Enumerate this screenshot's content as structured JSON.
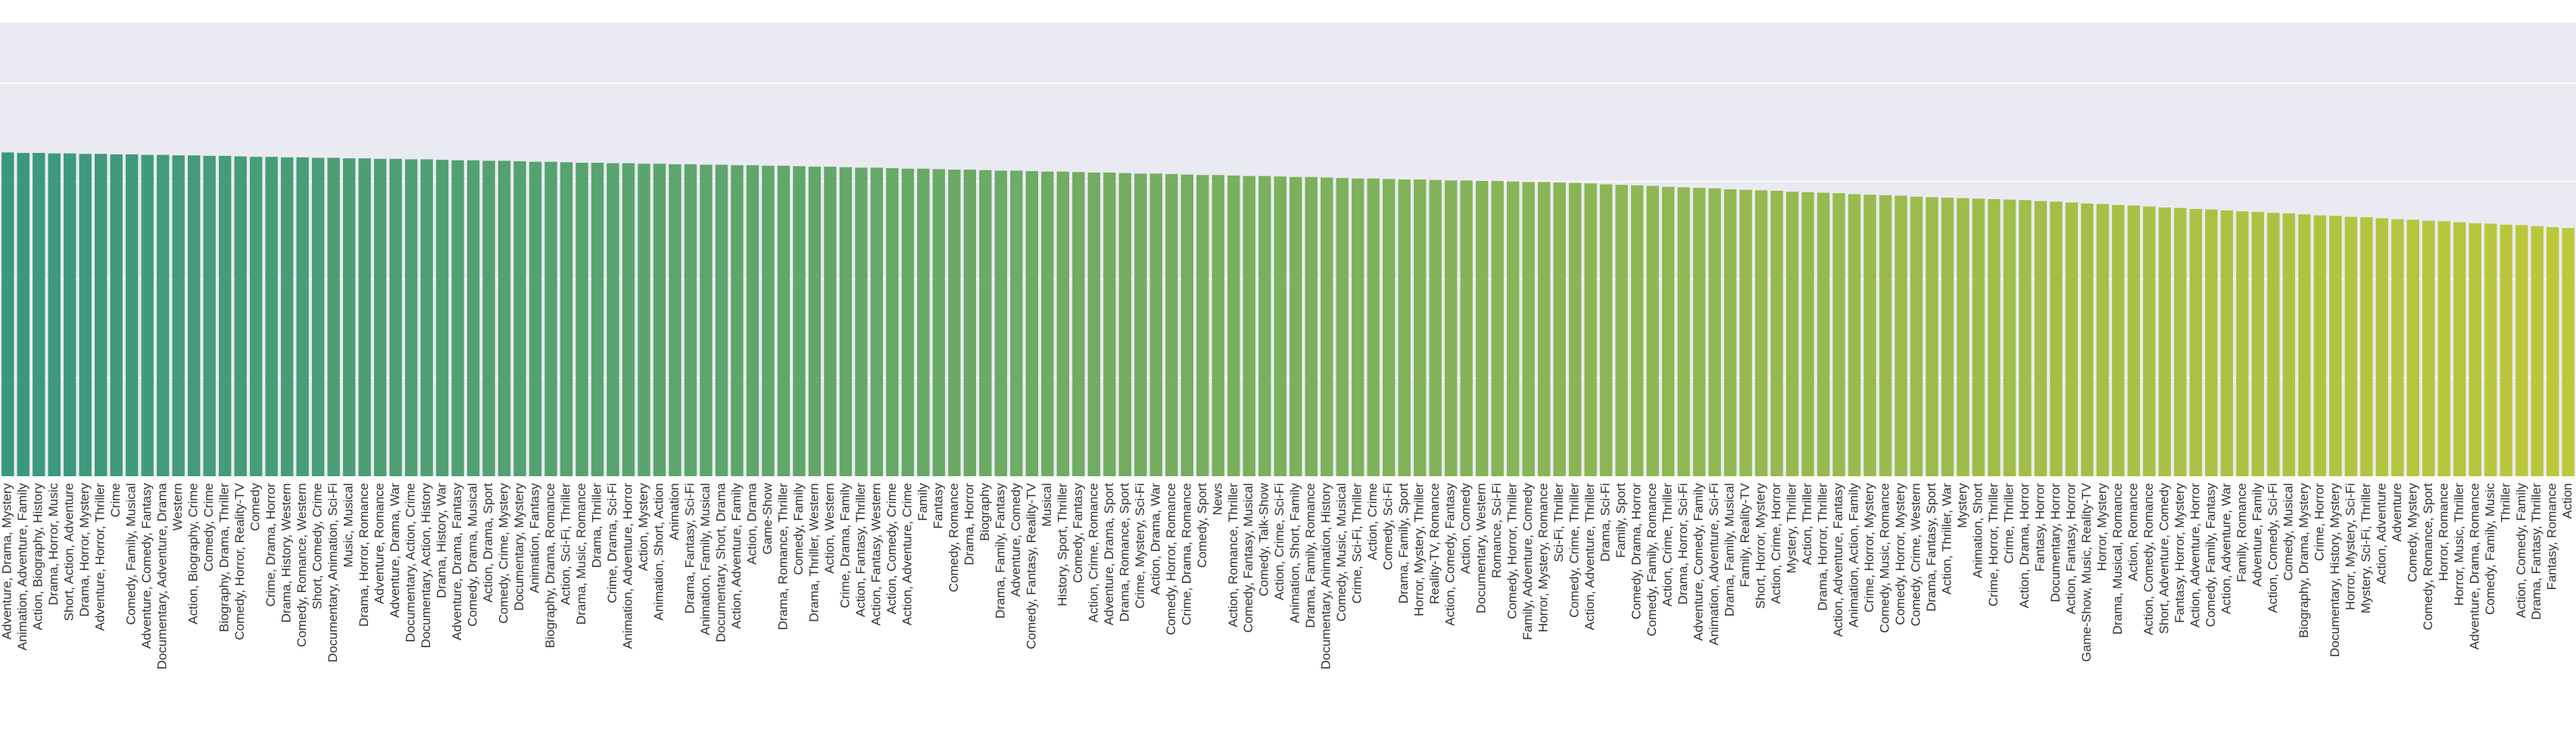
{
  "chart_data": {
    "type": "bar",
    "categories": [
      "Adventure, Drama, Mystery",
      "Animation, Adventure, Family",
      "Action, Biography, History",
      "Drama, Horror, Music",
      "Short, Action, Adventure",
      "Drama, Horror, Mystery",
      "Adventure, Horror, Thriller",
      "Crime",
      "Comedy, Family, Musical",
      "Adventure, Comedy, Fantasy",
      "Documentary, Adventure, Drama",
      "Western",
      "Action, Biography, Crime",
      "Comedy, Crime",
      "Biography, Drama, Thriller",
      "Comedy, Horror, Reality-TV",
      "Comedy",
      "Crime, Drama, Horror",
      "Drama, History, Western",
      "Comedy, Romance, Western",
      "Short, Comedy, Crime",
      "Documentary, Animation, Sci-Fi",
      "Music, Musical",
      "Drama, Horror, Romance",
      "Adventure, Romance",
      "Adventure, Drama, War",
      "Documentary, Action, Crime",
      "Documentary, Action, History",
      "Drama, History, War",
      "Adventure, Drama, Fantasy",
      "Comedy, Drama, Musical",
      "Action, Drama, Sport",
      "Comedy, Crime, Mystery",
      "Documentary, Mystery",
      "Animation, Fantasy",
      "Biography, Drama, Romance",
      "Action, Sci-Fi, Thriller",
      "Drama, Music, Romance",
      "Drama, Thriller",
      "Crime, Drama, Sci-Fi",
      "Animation, Adventure, Horror",
      "Action, Mystery",
      "Animation, Short, Action",
      "Animation",
      "Drama, Fantasy, Sci-Fi",
      "Animation, Family, Musical",
      "Documentary, Short, Drama",
      "Action, Adventure, Family",
      "Action, Drama",
      "Game-Show",
      "Drama, Romance, Thriller",
      "Comedy, Family",
      "Drama, Thriller, Western",
      "Action, Western",
      "Crime, Drama, Family",
      "Action, Fantasy, Thriller",
      "Action, Fantasy, Western",
      "Action, Comedy, Crime",
      "Action, Adventure, Crime",
      "Family",
      "Fantasy",
      "Comedy, Romance",
      "Drama, Horror",
      "Biography",
      "Drama, Family, Fantasy",
      "Adventure, Comedy",
      "Comedy, Fantasy, Reality-TV",
      "Musical",
      "History, Sport, Thriller",
      "Comedy, Fantasy",
      "Action, Crime, Romance",
      "Adventure, Drama, Sport",
      "Drama, Romance, Sport",
      "Crime, Mystery, Sci-Fi",
      "Action, Drama, War",
      "Comedy, Horror, Romance",
      "Crime, Drama, Romance",
      "Comedy, Sport",
      "News",
      "Action, Romance, Thriller",
      "Comedy, Fantasy, Musical",
      "Comedy, Talk-Show",
      "Action, Crime, Sci-Fi",
      "Animation, Short, Family",
      "Drama, Family, Romance",
      "Documentary, Animation, History",
      "Comedy, Music, Musical",
      "Crime, Sci-Fi, Thriller",
      "Action, Crime",
      "Comedy, Sci-Fi",
      "Drama, Family, Sport",
      "Horror, Mystery, Thriller",
      "Reality-TV, Romance",
      "Action, Comedy, Fantasy",
      "Action, Comedy",
      "Documentary, Western",
      "Romance, Sci-Fi",
      "Comedy, Horror, Thriller",
      "Family, Adventure, Comedy",
      "Horror, Mystery, Romance",
      "Sci-Fi, Thriller",
      "Comedy, Crime, Thriller",
      "Action, Adventure, Thriller",
      "Drama, Sci-Fi",
      "Family, Sport",
      "Comedy, Drama, Horror",
      "Comedy, Family, Romance",
      "Action, Crime, Thriller",
      "Drama, Horror, Sci-Fi",
      "Adventure, Comedy, Family",
      "Animation, Adventure, Sci-Fi",
      "Drama, Family, Musical",
      "Family, Reality-TV",
      "Short, Horror, Mystery",
      "Action, Crime, Horror",
      "Mystery, Thriller",
      "Action, Thriller",
      "Drama, Horror, Thriller",
      "Action, Adventure, Fantasy",
      "Animation, Action, Family",
      "Crime, Horror, Mystery",
      "Comedy, Music, Romance",
      "Comedy, Horror, Mystery",
      "Comedy, Crime, Western",
      "Drama, Fantasy, Sport",
      "Action, Thriller, War",
      "Mystery",
      "Animation, Short",
      "Crime, Horror, Thriller",
      "Crime, Thriller",
      "Action, Drama, Horror",
      "Fantasy, Horror",
      "Documentary, Horror",
      "Action, Fantasy, Horror",
      "Game-Show, Music, Reality-TV",
      "Horror, Mystery",
      "Drama, Musical, Romance",
      "Action, Romance",
      "Action, Comedy, Romance",
      "Short, Adventure, Comedy",
      "Fantasy, Horror, Mystery",
      "Action, Adventure, Horror",
      "Comedy, Family, Fantasy",
      "Action, Adventure, War",
      "Family, Romance",
      "Adventure, Family",
      "Action, Comedy, Sci-Fi",
      "Comedy, Musical",
      "Biography, Drama, Mystery",
      "Crime, Horror",
      "Documentary, History, Mystery",
      "Horror, Mystery, Sci-Fi",
      "Mystery, Sci-Fi, Thriller",
      "Action, Adventure",
      "Adventure",
      "Comedy, Mystery",
      "Comedy, Romance, Sport",
      "Horror, Romance",
      "Horror, Music, Thriller",
      "Adventure, Drama, Romance",
      "Comedy, Family, Music",
      "Thriller",
      "Action, Comedy, Family",
      "Drama, Fantasy, Thriller",
      "Fantasy, Romance",
      "Action"
    ],
    "values": [
      6.59,
      6.58,
      6.58,
      6.57,
      6.57,
      6.56,
      6.56,
      6.55,
      6.55,
      6.54,
      6.54,
      6.53,
      6.53,
      6.52,
      6.52,
      6.51,
      6.5,
      6.5,
      6.49,
      6.49,
      6.48,
      6.48,
      6.47,
      6.47,
      6.46,
      6.46,
      6.45,
      6.45,
      6.44,
      6.43,
      6.43,
      6.42,
      6.42,
      6.41,
      6.4,
      6.4,
      6.39,
      6.38,
      6.38,
      6.37,
      6.37,
      6.36,
      6.36,
      6.35,
      6.35,
      6.34,
      6.34,
      6.33,
      6.33,
      6.32,
      6.32,
      6.31,
      6.3,
      6.3,
      6.29,
      6.28,
      6.28,
      6.27,
      6.26,
      6.26,
      6.25,
      6.24,
      6.24,
      6.23,
      6.22,
      6.22,
      6.21,
      6.2,
      6.2,
      6.19,
      6.18,
      6.18,
      6.17,
      6.16,
      6.16,
      6.15,
      6.14,
      6.13,
      6.13,
      6.12,
      6.11,
      6.11,
      6.1,
      6.09,
      6.09,
      6.08,
      6.07,
      6.06,
      6.06,
      6.05,
      6.04,
      6.04,
      6.03,
      6.02,
      6.02,
      6.01,
      6.01,
      6.0,
      5.99,
      5.99,
      5.98,
      5.97,
      5.96,
      5.94,
      5.93,
      5.92,
      5.91,
      5.89,
      5.88,
      5.87,
      5.86,
      5.84,
      5.83,
      5.82,
      5.81,
      5.79,
      5.78,
      5.77,
      5.76,
      5.74,
      5.73,
      5.72,
      5.71,
      5.69,
      5.68,
      5.67,
      5.66,
      5.65,
      5.64,
      5.63,
      5.62,
      5.6,
      5.59,
      5.57,
      5.55,
      5.54,
      5.52,
      5.51,
      5.49,
      5.47,
      5.46,
      5.44,
      5.43,
      5.41,
      5.39,
      5.38,
      5.36,
      5.35,
      5.33,
      5.31,
      5.3,
      5.28,
      5.27,
      5.25,
      5.23,
      5.22,
      5.2,
      5.19,
      5.17,
      5.15,
      5.14,
      5.12,
      5.11,
      5.09,
      5.07,
      5.05
    ],
    "palette": [
      "#3a987f",
      "#bdc83a"
    ],
    "ylim": [
      0,
      9.23
    ],
    "yticks": [
      0,
      2,
      4,
      6,
      8
    ],
    "grid": true
  }
}
